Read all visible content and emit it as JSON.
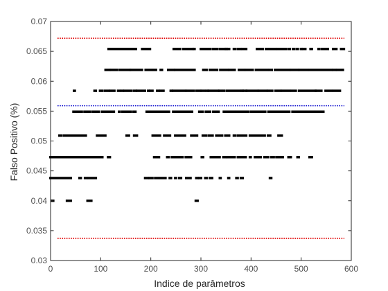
{
  "chart_data": {
    "type": "scatter",
    "title": "",
    "xlabel": "Indice de parâmetros",
    "ylabel": "Falso Positivo (%)",
    "xlim": [
      0,
      600
    ],
    "ylim": [
      0.03,
      0.07
    ],
    "xticks": [
      0,
      100,
      200,
      300,
      400,
      500,
      600
    ],
    "xtick_labels": [
      "0",
      "100",
      "200",
      "300",
      "400",
      "500",
      "600"
    ],
    "yticks": [
      0.03,
      0.035,
      0.04,
      0.045,
      0.05,
      0.055,
      0.06,
      0.065,
      0.07
    ],
    "ytick_labels": [
      "0.03",
      "0.035",
      "0.04",
      "0.045",
      "0.05",
      "0.055",
      "0.06",
      "0.065",
      "0.07"
    ],
    "grid": false,
    "legend": false,
    "marker_color": "#000000",
    "reference_lines": [
      {
        "y": 0.0672,
        "color": "#e00000",
        "style": "dotted"
      },
      {
        "y": 0.0559,
        "color": "#0000cc",
        "style": "dotted"
      },
      {
        "y": 0.0337,
        "color": "#e00000",
        "style": "dotted"
      }
    ],
    "series": [
      {
        "y": 0.0654,
        "x_ranges": [
          [
            116,
            170
          ],
          [
            183,
            198
          ],
          [
            246,
            258
          ],
          [
            265,
            283
          ],
          [
            286,
            287
          ],
          [
            300,
            318
          ],
          [
            324,
            332
          ],
          [
            338,
            348
          ],
          [
            350,
            351
          ],
          [
            354,
            356
          ],
          [
            366,
            368
          ],
          [
            374,
            378
          ],
          [
            383,
            390
          ],
          [
            412,
            423
          ],
          [
            430,
            449
          ],
          [
            454,
            469
          ],
          [
            475,
            477
          ],
          [
            484,
            486
          ],
          [
            492,
            493
          ],
          [
            500,
            500
          ],
          [
            504,
            508
          ],
          [
            519,
            521
          ],
          [
            535,
            536
          ],
          [
            542,
            553
          ],
          [
            564,
            570
          ],
          [
            580,
            585
          ]
        ]
      },
      {
        "y": 0.0619,
        "x_ranges": [
          [
            110,
            117
          ],
          [
            121,
            132
          ],
          [
            138,
            158
          ],
          [
            160,
            182
          ],
          [
            190,
            202
          ],
          [
            207,
            210
          ],
          [
            220,
            222
          ],
          [
            235,
            246
          ],
          [
            249,
            287
          ],
          [
            305,
            311
          ],
          [
            318,
            332
          ],
          [
            339,
            354
          ],
          [
            357,
            367
          ],
          [
            376,
            386
          ],
          [
            390,
            403
          ],
          [
            410,
            432
          ],
          [
            437,
            441
          ],
          [
            448,
            476
          ],
          [
            480,
            494
          ],
          [
            497,
            512
          ],
          [
            517,
            560
          ],
          [
            564,
            568
          ],
          [
            572,
            583
          ]
        ]
      },
      {
        "y": 0.0584,
        "x_ranges": [
          [
            47,
            48
          ],
          [
            88,
            90
          ],
          [
            99,
            103
          ],
          [
            109,
            115
          ],
          [
            119,
            127
          ],
          [
            135,
            136
          ],
          [
            141,
            144
          ],
          [
            148,
            161
          ],
          [
            167,
            170
          ],
          [
            173,
            188
          ],
          [
            195,
            196
          ],
          [
            199,
            203
          ],
          [
            213,
            215
          ],
          [
            219,
            225
          ],
          [
            240,
            242
          ],
          [
            245,
            268
          ],
          [
            272,
            285
          ],
          [
            291,
            298
          ],
          [
            302,
            307
          ],
          [
            312,
            313
          ],
          [
            316,
            334
          ],
          [
            337,
            340
          ],
          [
            345,
            346
          ],
          [
            352,
            378
          ],
          [
            382,
            383
          ],
          [
            385,
            390
          ],
          [
            392,
            412
          ],
          [
            416,
            430
          ],
          [
            434,
            442
          ],
          [
            449,
            458
          ],
          [
            462,
            476
          ],
          [
            481,
            489
          ],
          [
            496,
            528
          ],
          [
            530,
            540
          ],
          [
            549,
            561
          ],
          [
            566,
            577
          ]
        ]
      },
      {
        "y": 0.0549,
        "x_ranges": [
          [
            46,
            62
          ],
          [
            68,
            78
          ],
          [
            84,
            96
          ],
          [
            103,
            103
          ],
          [
            108,
            126
          ],
          [
            137,
            137
          ],
          [
            143,
            160
          ],
          [
            166,
            169
          ],
          [
            192,
            196
          ],
          [
            200,
            210
          ],
          [
            214,
            236
          ],
          [
            245,
            257
          ],
          [
            262,
            282
          ],
          [
            297,
            303
          ],
          [
            310,
            318
          ],
          [
            325,
            335
          ],
          [
            346,
            357
          ],
          [
            362,
            368
          ],
          [
            370,
            394
          ],
          [
            400,
            409
          ],
          [
            414,
            428
          ],
          [
            435,
            440
          ],
          [
            445,
            470
          ],
          [
            474,
            476
          ],
          [
            483,
            493
          ],
          [
            497,
            508
          ],
          [
            511,
            526
          ],
          [
            528,
            544
          ]
        ]
      },
      {
        "y": 0.0509,
        "x_ranges": [
          [
            18,
            21
          ],
          [
            27,
            30
          ],
          [
            35,
            43
          ],
          [
            48,
            70
          ],
          [
            93,
            109
          ],
          [
            152,
            156
          ],
          [
            167,
            172
          ],
          [
            204,
            218
          ],
          [
            227,
            238
          ],
          [
            249,
            257
          ],
          [
            262,
            268
          ],
          [
            281,
            292
          ],
          [
            304,
            310
          ],
          [
            316,
            323
          ],
          [
            331,
            332
          ],
          [
            336,
            342
          ],
          [
            349,
            356
          ],
          [
            366,
            368
          ],
          [
            374,
            378
          ],
          [
            383,
            390
          ],
          [
            398,
            417
          ],
          [
            422,
            427
          ],
          [
            434,
            438
          ],
          [
            455,
            461
          ]
        ]
      },
      {
        "y": 0.0473,
        "x_ranges": [
          [
            0,
            103
          ],
          [
            115,
            118
          ],
          [
            207,
            216
          ],
          [
            233,
            235
          ],
          [
            242,
            244
          ],
          [
            249,
            263
          ],
          [
            270,
            280
          ],
          [
            302,
            304
          ],
          [
            320,
            337
          ],
          [
            345,
            350
          ],
          [
            353,
            367
          ],
          [
            374,
            377
          ],
          [
            382,
            389
          ],
          [
            398,
            399
          ],
          [
            408,
            412
          ],
          [
            417,
            419
          ],
          [
            427,
            434
          ],
          [
            441,
            445
          ],
          [
            451,
            463
          ],
          [
            475,
            479
          ],
          [
            493,
            495
          ],
          [
            517,
            521
          ]
        ]
      },
      {
        "y": 0.0438,
        "x_ranges": [
          [
            0,
            40
          ],
          [
            58,
            60
          ],
          [
            69,
            72
          ],
          [
            77,
            90
          ],
          [
            189,
            194
          ],
          [
            198,
            203
          ],
          [
            209,
            214
          ],
          [
            219,
            229
          ],
          [
            238,
            240
          ],
          [
            249,
            250
          ],
          [
            257,
            260
          ],
          [
            271,
            279
          ],
          [
            291,
            293
          ],
          [
            297,
            300
          ],
          [
            309,
            311
          ],
          [
            318,
            322
          ],
          [
            338,
            339
          ],
          [
            355,
            356
          ],
          [
            371,
            373
          ],
          [
            380,
            383
          ],
          [
            438,
            440
          ]
        ]
      },
      {
        "y": 0.04,
        "x_ranges": [
          [
            3,
            5
          ],
          [
            33,
            40
          ],
          [
            74,
            81
          ],
          [
            290,
            293
          ]
        ]
      }
    ]
  }
}
